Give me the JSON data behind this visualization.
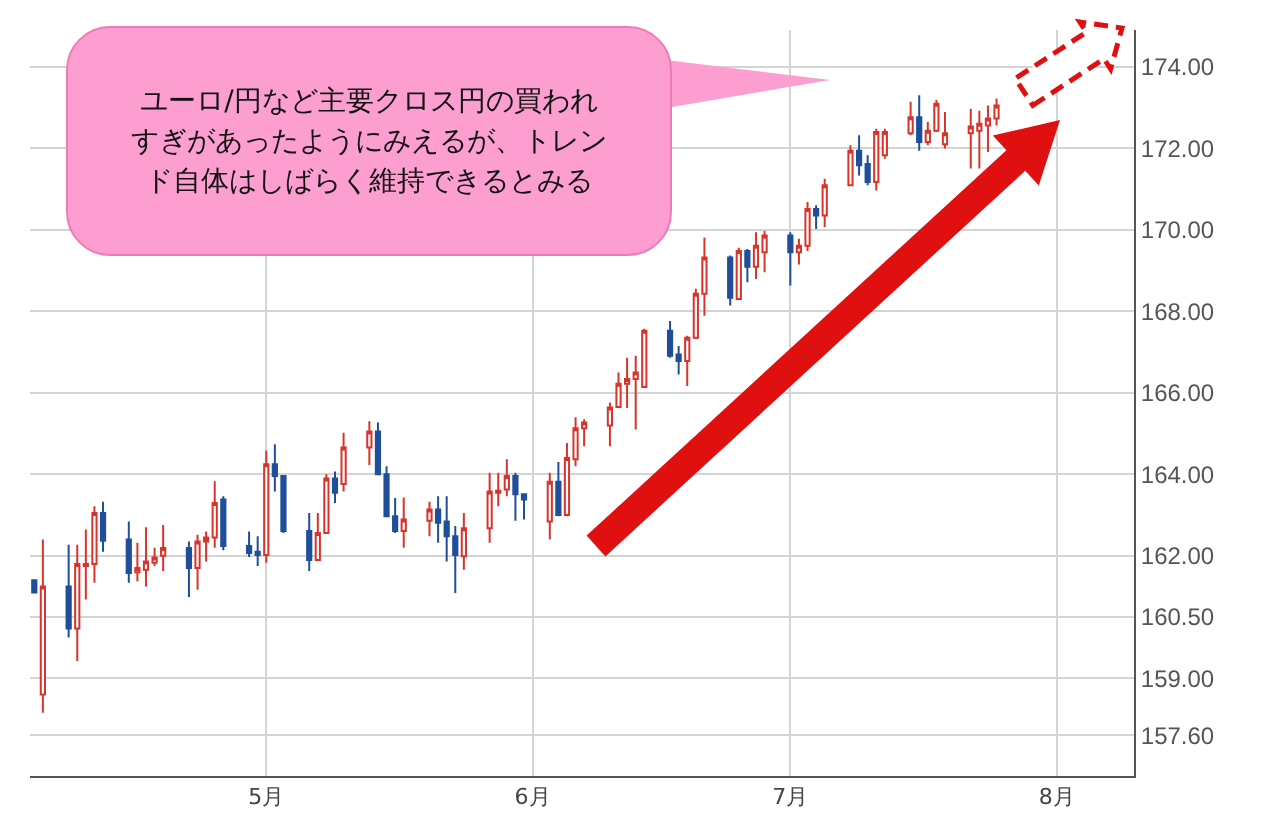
{
  "chart_data": {
    "type": "candlestick",
    "annotations": [
      "ユーロ/円など主要クロス円の買われすぎがあったようにみえるが、トレンド自体はしばらく維持できるとみる"
    ],
    "x": [
      "--04-04",
      "--04-05",
      "--04-08",
      "--04-09",
      "--04-10",
      "--04-11",
      "--04-12",
      "--04-15",
      "--04-16",
      "--04-17",
      "--04-18",
      "--04-19",
      "--04-22",
      "--04-23",
      "--04-24",
      "--04-25",
      "--04-26",
      "--04-29",
      "--04-30",
      "--05-01",
      "--05-02",
      "--05-03",
      "--05-06",
      "--05-07",
      "--05-08",
      "--05-09",
      "--05-10",
      "--05-13",
      "--05-14",
      "--05-15",
      "--05-16",
      "--05-17",
      "--05-20",
      "--05-21",
      "--05-22",
      "--05-23",
      "--05-24",
      "--05-27",
      "--05-28",
      "--05-29",
      "--05-30",
      "--05-31",
      "--06-03",
      "--06-04",
      "--06-05",
      "--06-06",
      "--06-07",
      "--06-10",
      "--06-11",
      "--06-12",
      "--06-13",
      "--06-14",
      "--06-17",
      "--06-18",
      "--06-19",
      "--06-20",
      "--06-21",
      "--06-24",
      "--06-25",
      "--06-26",
      "--06-27",
      "--06-28",
      "--07-01",
      "--07-02",
      "--07-03",
      "--07-04",
      "--07-05",
      "--07-08",
      "--07-09",
      "--07-10",
      "--07-11",
      "--07-12",
      "--07-15",
      "--07-16",
      "--07-17",
      "--07-18",
      "--07-19",
      "--07-22",
      "--07-23",
      "--07-24",
      "--07-25"
    ],
    "ohlc": [
      [
        161.4,
        161.4,
        161.1,
        161.1
      ],
      [
        158.6,
        162.4,
        158.15,
        161.25
      ],
      [
        161.25,
        162.27,
        160.0,
        160.22
      ],
      [
        160.22,
        162.27,
        159.42,
        161.8
      ],
      [
        161.75,
        162.65,
        160.93,
        161.8
      ],
      [
        161.8,
        163.22,
        161.34,
        163.05
      ],
      [
        163.05,
        163.33,
        162.1,
        162.37
      ],
      [
        162.4,
        162.84,
        161.34,
        161.58
      ],
      [
        161.6,
        162.32,
        161.38,
        161.7
      ],
      [
        161.66,
        162.7,
        161.25,
        161.86
      ],
      [
        161.83,
        162.2,
        161.75,
        161.96
      ],
      [
        162.0,
        162.76,
        161.63,
        162.19
      ],
      [
        162.19,
        162.35,
        160.99,
        161.7
      ],
      [
        161.7,
        162.52,
        161.17,
        162.35
      ],
      [
        162.35,
        162.6,
        161.86,
        162.45
      ],
      [
        162.45,
        163.83,
        162.2,
        163.3
      ],
      [
        163.38,
        163.46,
        162.14,
        162.24
      ],
      [
        162.24,
        162.6,
        161.97,
        162.07
      ],
      [
        162.1,
        162.48,
        161.75,
        162.02
      ],
      [
        162.02,
        164.58,
        161.83,
        164.25
      ],
      [
        164.25,
        164.74,
        163.58,
        163.96
      ],
      [
        163.96,
        163.96,
        162.56,
        162.61
      ],
      [
        162.61,
        163.05,
        161.63,
        161.9
      ],
      [
        161.9,
        163.05,
        161.9,
        162.56
      ],
      [
        162.56,
        164.0,
        162.56,
        163.9
      ],
      [
        163.9,
        164.07,
        163.3,
        163.55
      ],
      [
        163.76,
        165.02,
        163.58,
        164.66
      ],
      [
        164.66,
        165.3,
        164.23,
        165.05
      ],
      [
        165.05,
        165.27,
        164.0,
        164.0
      ],
      [
        164.0,
        164.2,
        162.97,
        162.97
      ],
      [
        162.97,
        163.42,
        162.56,
        162.61
      ],
      [
        162.61,
        163.43,
        162.2,
        162.89
      ],
      [
        162.86,
        163.33,
        162.48,
        163.14
      ],
      [
        163.14,
        163.46,
        162.32,
        162.81
      ],
      [
        162.84,
        163.46,
        161.86,
        162.48
      ],
      [
        162.48,
        162.73,
        161.09,
        162.02
      ],
      [
        161.99,
        163.05,
        161.66,
        162.68
      ],
      [
        162.68,
        164.04,
        162.32,
        163.58
      ],
      [
        163.55,
        164.04,
        163.22,
        163.6
      ],
      [
        163.63,
        164.37,
        163.46,
        163.96
      ],
      [
        163.96,
        164.04,
        162.86,
        163.51
      ],
      [
        163.51,
        163.51,
        162.89,
        163.38
      ],
      [
        162.84,
        164.04,
        162.4,
        163.82
      ],
      [
        163.82,
        164.3,
        162.97,
        163.0
      ],
      [
        163.0,
        164.77,
        162.97,
        164.4
      ],
      [
        164.37,
        165.4,
        164.2,
        165.13
      ],
      [
        165.13,
        165.35,
        164.69,
        165.27
      ],
      [
        165.2,
        165.76,
        164.69,
        165.64
      ],
      [
        165.65,
        166.5,
        165.63,
        166.22
      ],
      [
        166.22,
        166.86,
        165.63,
        166.34
      ],
      [
        166.34,
        166.91,
        165.1,
        166.5
      ],
      [
        166.14,
        167.57,
        166.14,
        167.52
      ],
      [
        167.52,
        167.76,
        166.86,
        166.91
      ],
      [
        166.94,
        167.15,
        166.45,
        166.78
      ],
      [
        166.78,
        167.4,
        166.17,
        167.35
      ],
      [
        167.35,
        168.55,
        167.32,
        168.43
      ],
      [
        168.43,
        169.81,
        167.89,
        169.32
      ],
      [
        169.32,
        169.37,
        168.14,
        168.33
      ],
      [
        168.3,
        169.56,
        168.27,
        169.48
      ],
      [
        169.48,
        169.53,
        168.71,
        169.09
      ],
      [
        169.09,
        169.94,
        168.79,
        169.61
      ],
      [
        169.45,
        169.97,
        168.96,
        169.86
      ],
      [
        169.86,
        169.94,
        168.63,
        169.45
      ],
      [
        169.45,
        169.78,
        169.15,
        169.61
      ],
      [
        169.61,
        170.68,
        169.48,
        170.51
      ],
      [
        170.51,
        170.6,
        170.02,
        170.35
      ],
      [
        170.35,
        171.25,
        170.07,
        171.09
      ],
      [
        171.09,
        172.07,
        171.09,
        171.94
      ],
      [
        171.94,
        172.32,
        171.33,
        171.58
      ],
      [
        171.61,
        171.83,
        171.09,
        171.17
      ],
      [
        171.17,
        172.48,
        170.96,
        172.4
      ],
      [
        171.83,
        172.48,
        171.74,
        172.4
      ],
      [
        172.37,
        173.14,
        172.32,
        172.76
      ],
      [
        172.76,
        173.3,
        171.94,
        172.15
      ],
      [
        172.15,
        172.64,
        172.07,
        172.43
      ],
      [
        172.43,
        173.18,
        172.4,
        173.09
      ],
      [
        172.1,
        172.89,
        171.99,
        172.37
      ],
      [
        172.37,
        172.97,
        171.5,
        172.53
      ],
      [
        172.43,
        172.92,
        171.5,
        172.6
      ],
      [
        172.56,
        173.05,
        171.91,
        172.73
      ],
      [
        172.73,
        173.22,
        172.56,
        173.05
      ]
    ],
    "colors": [
      "#1f4e9a",
      "#d9342b",
      "#1f4e9a",
      "#d9342b",
      "#d9342b",
      "#d9342b",
      "#1f4e9a",
      "#1f4e9a",
      "#d9342b",
      "#d9342b",
      "#d9342b",
      "#d9342b",
      "#1f4e9a",
      "#d9342b",
      "#d9342b",
      "#d9342b",
      "#1f4e9a",
      "#1f4e9a",
      "#1f4e9a",
      "#d9342b",
      "#1f4e9a",
      "#1f4e9a",
      "#1f4e9a",
      "#d9342b",
      "#d9342b",
      "#1f4e9a",
      "#d9342b",
      "#d9342b",
      "#1f4e9a",
      "#1f4e9a",
      "#1f4e9a",
      "#d9342b",
      "#d9342b",
      "#1f4e9a",
      "#1f4e9a",
      "#1f4e9a",
      "#d9342b",
      "#d9342b",
      "#d9342b",
      "#d9342b",
      "#1f4e9a",
      "#1f4e9a",
      "#d9342b",
      "#1f4e9a",
      "#d9342b",
      "#d9342b",
      "#d9342b",
      "#d9342b",
      "#d9342b",
      "#d9342b",
      "#d9342b",
      "#d9342b",
      "#1f4e9a",
      "#1f4e9a",
      "#d9342b",
      "#d9342b",
      "#d9342b",
      "#1f4e9a",
      "#d9342b",
      "#1f4e9a",
      "#d9342b",
      "#d9342b",
      "#1f4e9a",
      "#d9342b",
      "#d9342b",
      "#1f4e9a",
      "#d9342b",
      "#d9342b",
      "#1f4e9a",
      "#1f4e9a",
      "#d9342b",
      "#d9342b",
      "#d9342b",
      "#1f4e9a",
      "#d9342b",
      "#d9342b",
      "#d9342b",
      "#d9342b",
      "#d9342b",
      "#d9342b",
      "#d9342b"
    ],
    "xlim": [
      "--04-03T12:00",
      "--08-10"
    ],
    "xticks": [
      {
        "value": "--05-01",
        "label": "5月"
      },
      {
        "value": "--06-01",
        "label": "6月"
      },
      {
        "value": "--07-01",
        "label": "7月"
      },
      {
        "value": "--08-01",
        "label": "8月"
      }
    ],
    "ylim": [
      156.6,
      174.9
    ],
    "yticks": [
      {
        "value": 174,
        "label": "174.00"
      },
      {
        "value": 172,
        "label": "172.00"
      },
      {
        "value": 170,
        "label": "170.00"
      },
      {
        "value": 168,
        "label": "168.00"
      },
      {
        "value": 166,
        "label": "166.00"
      },
      {
        "value": 164,
        "label": "164.00"
      },
      {
        "value": 162,
        "label": "162.00"
      },
      {
        "value": 160.5,
        "label": "160.50"
      },
      {
        "value": 159,
        "label": "159.00"
      },
      {
        "value": 157.6,
        "label": "157.60"
      }
    ],
    "grid": true
  }
}
